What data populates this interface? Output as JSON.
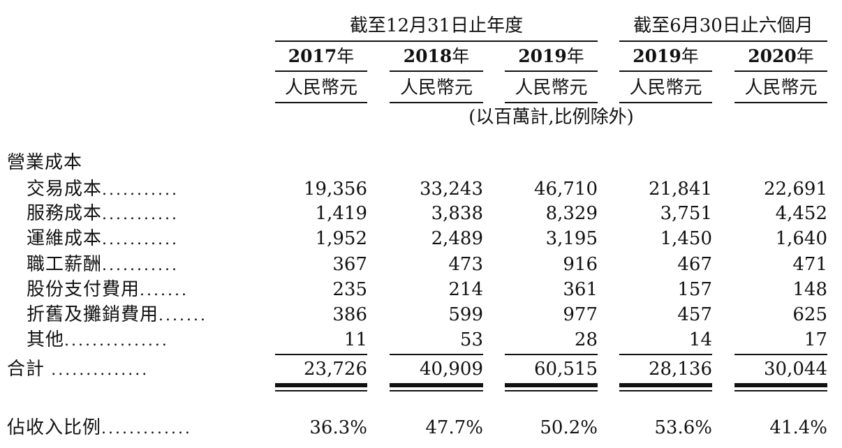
{
  "header": {
    "group1": "截至12月31日止年度",
    "group2": "截至6月30日止六個月",
    "years": [
      {
        "year": "2017",
        "suffix": "年"
      },
      {
        "year": "2018",
        "suffix": "年"
      },
      {
        "year": "2019",
        "suffix": "年"
      },
      {
        "year": "2019",
        "suffix": "年"
      },
      {
        "year": "2020",
        "suffix": "年"
      }
    ],
    "units": [
      "人民幣元",
      "人民幣元",
      "人民幣元",
      "人民幣元",
      "人民幣元"
    ],
    "note": "(以百萬計,比例除外)"
  },
  "section": {
    "title": "營業成本"
  },
  "rows": [
    {
      "label": "交易成本",
      "dots": "...........",
      "values": [
        "19,356",
        "33,243",
        "46,710",
        "21,841",
        "22,691"
      ]
    },
    {
      "label": "服務成本",
      "dots": "...........",
      "values": [
        "1,419",
        "3,838",
        "8,329",
        "3,751",
        "4,452"
      ]
    },
    {
      "label": "運維成本",
      "dots": "...........",
      "values": [
        "1,952",
        "2,489",
        "3,195",
        "1,450",
        "1,640"
      ]
    },
    {
      "label": "職工薪酬",
      "dots": "...........",
      "values": [
        "367",
        "473",
        "916",
        "467",
        "471"
      ]
    },
    {
      "label": "股份支付費用",
      "dots": ".......",
      "values": [
        "235",
        "214",
        "361",
        "157",
        "148"
      ]
    },
    {
      "label": "折舊及攤銷費用",
      "dots": ".......",
      "values": [
        "386",
        "599",
        "977",
        "457",
        "625"
      ]
    },
    {
      "label": "其他",
      "dots": "...............",
      "values": [
        "11",
        "53",
        "28",
        "14",
        "17"
      ]
    }
  ],
  "total": {
    "label": "合計",
    "dots": "..............",
    "values": [
      "23,726",
      "40,909",
      "60,515",
      "28,136",
      "30,044"
    ]
  },
  "ratio": {
    "label": "佔收入比例",
    "dots": ".............",
    "values": [
      "36.3%",
      "47.7%",
      "50.2%",
      "53.6%",
      "41.4%"
    ]
  }
}
